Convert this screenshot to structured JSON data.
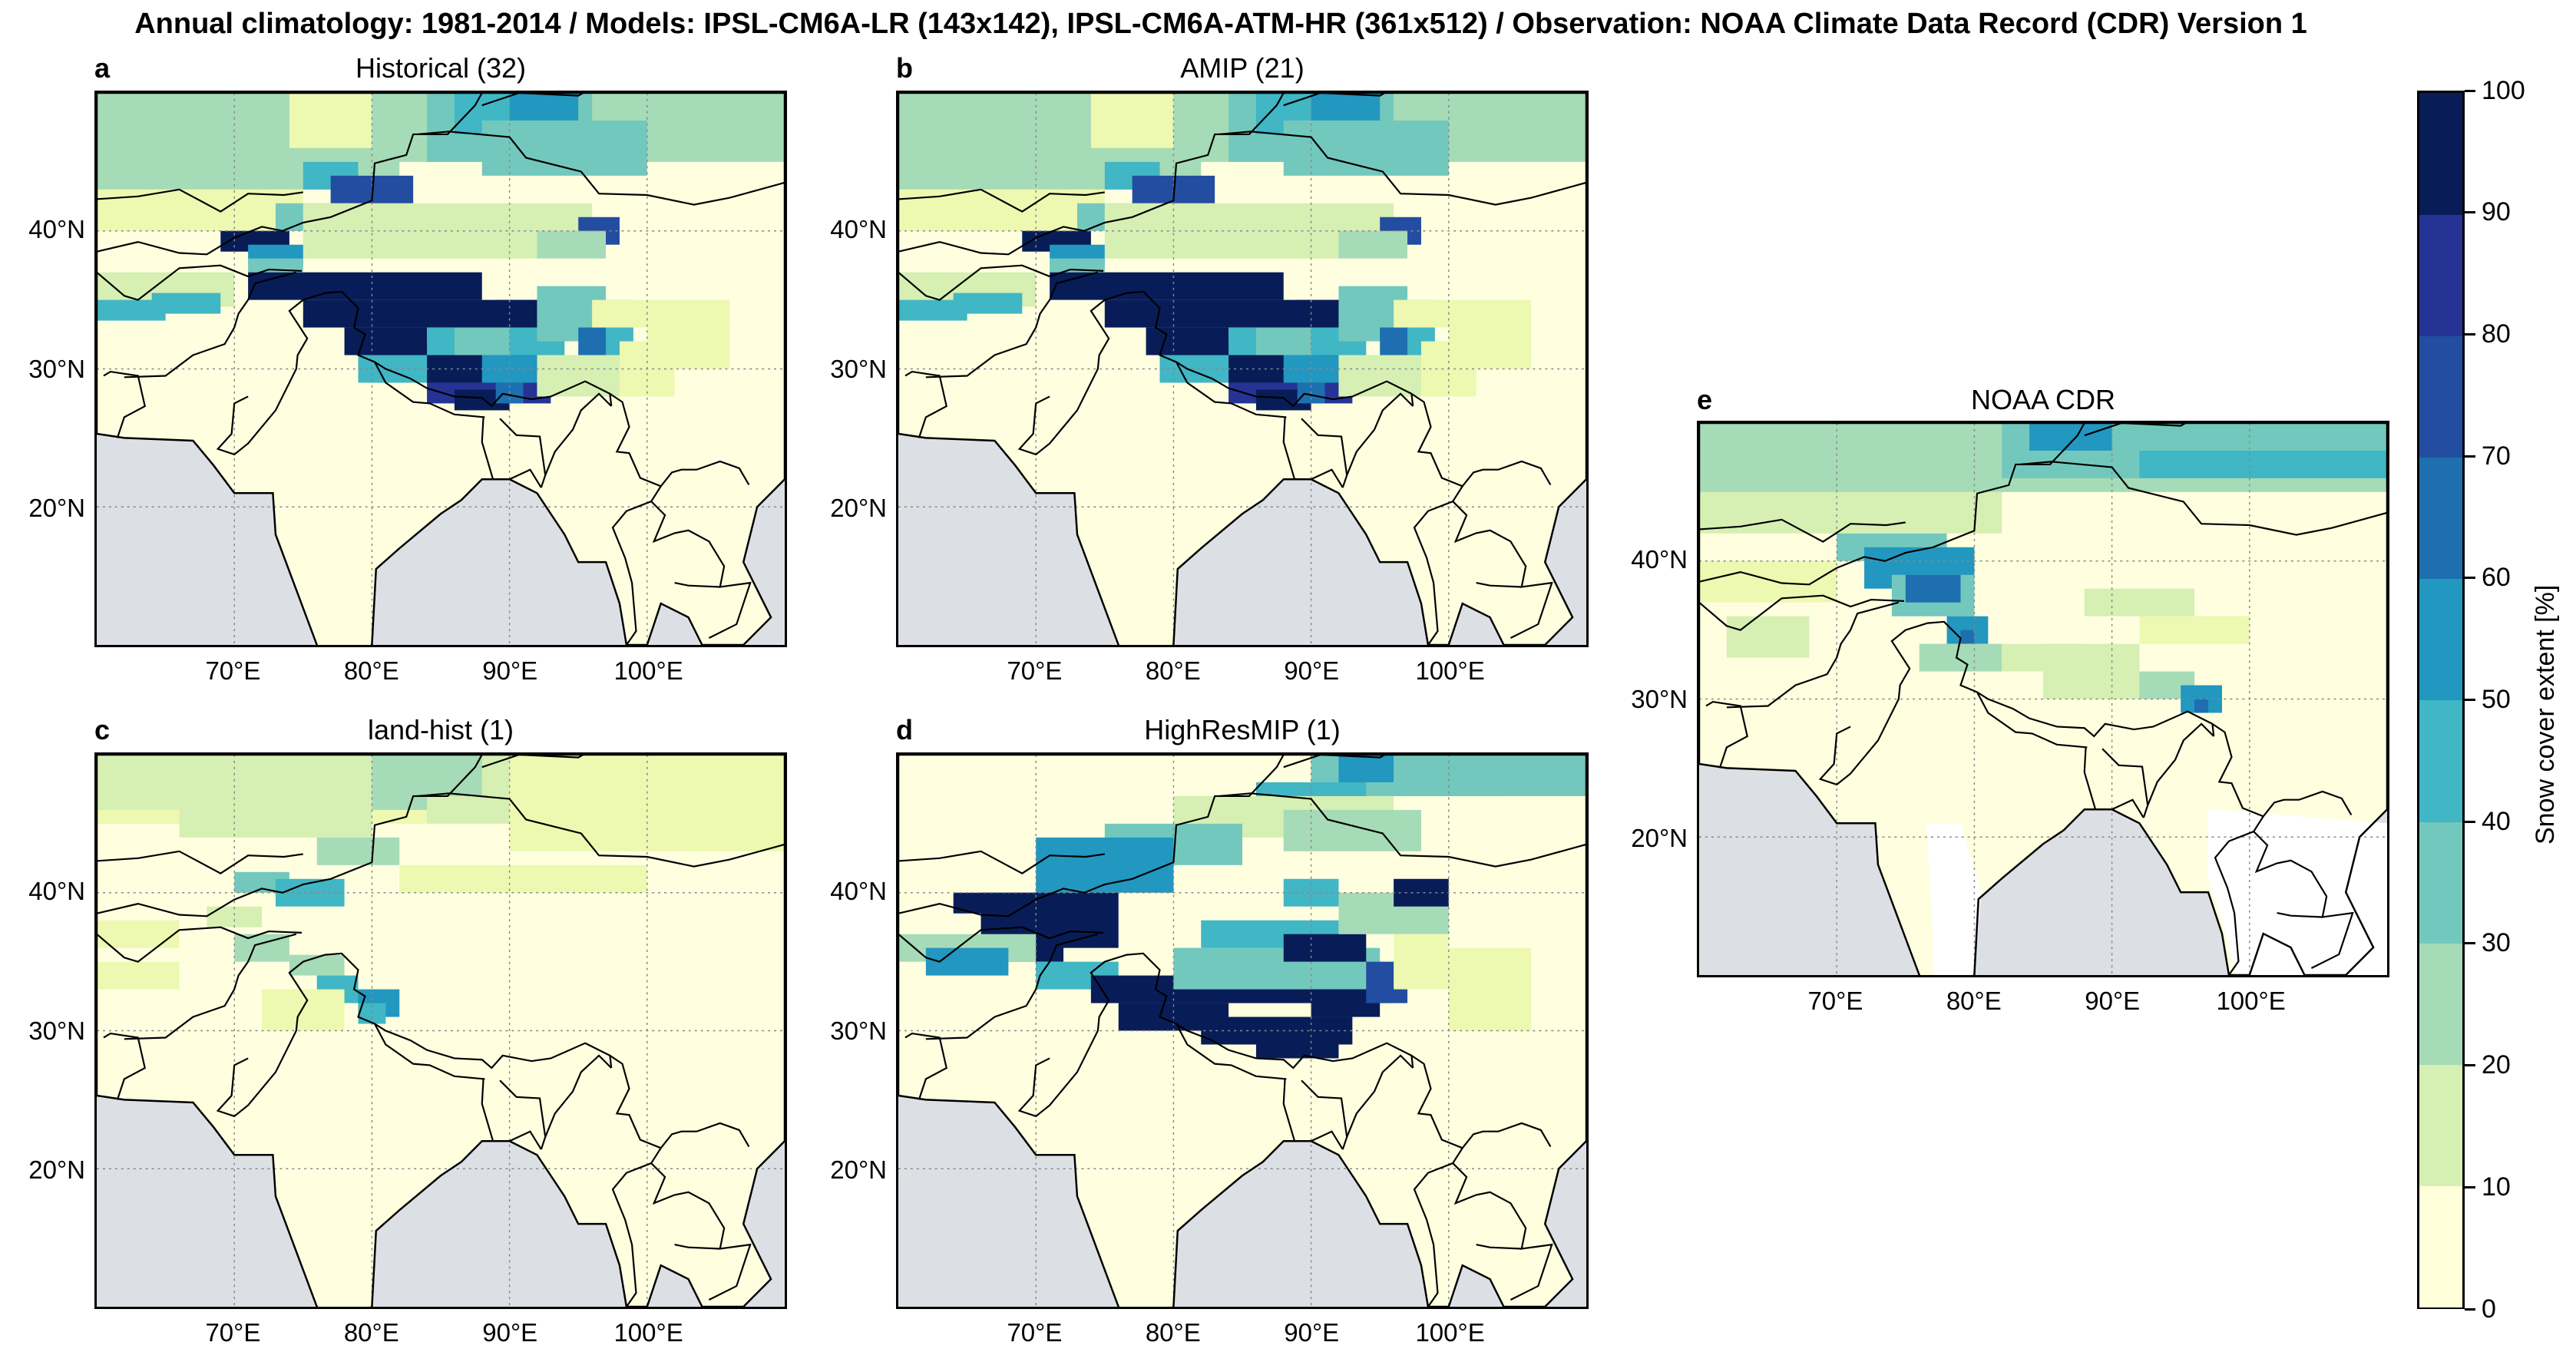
{
  "figure": {
    "title": "Annual climatology: 1981-2014 / Models: IPSL-CM6A-LR (143x142), IPSL-CM6A-ATM-HR (361x512) / Observation: NOAA Climate Data Record (CDR) Version 1"
  },
  "panels": [
    {
      "letter": "a",
      "title": "Historical (32)",
      "x_ticks": [
        "70°E",
        "80°E",
        "90°E",
        "100°E"
      ],
      "y_ticks": [
        "40°N",
        "30°N",
        "20°N"
      ]
    },
    {
      "letter": "b",
      "title": "AMIP (21)",
      "x_ticks": [
        "70°E",
        "80°E",
        "90°E",
        "100°E"
      ],
      "y_ticks": [
        "40°N",
        "30°N",
        "20°N"
      ]
    },
    {
      "letter": "c",
      "title": "land-hist (1)",
      "x_ticks": [
        "70°E",
        "80°E",
        "90°E",
        "100°E"
      ],
      "y_ticks": [
        "40°N",
        "30°N",
        "20°N"
      ]
    },
    {
      "letter": "d",
      "title": "HighResMIP (1)",
      "x_ticks": [
        "70°E",
        "80°E",
        "90°E",
        "100°E"
      ],
      "y_ticks": [
        "40°N",
        "30°N",
        "20°N"
      ]
    },
    {
      "letter": "e",
      "title": "NOAA CDR",
      "x_ticks": [
        "70°E",
        "80°E",
        "90°E",
        "100°E"
      ],
      "y_ticks": [
        "40°N",
        "30°N",
        "20°N"
      ]
    }
  ],
  "colorbar": {
    "label": "Snow cover extent [%]",
    "ticks": [
      "0",
      "10",
      "20",
      "30",
      "40",
      "50",
      "60",
      "70",
      "80",
      "90",
      "100"
    ],
    "colors": [
      "#ffffd9",
      "#edf8b1",
      "#d6efb3",
      "#a6dbb7",
      "#73c8bd",
      "#41b6c4",
      "#2297c0",
      "#1d6fb0",
      "#234da0",
      "#253494",
      "#081d58"
    ]
  },
  "map_colors": {
    "ocean": "#dcdfe4",
    "land_low": "#ffffe0",
    "nodata_land": "#ffffff"
  },
  "extent": {
    "lon": [
      60,
      110
    ],
    "lat": [
      10,
      50
    ]
  }
}
